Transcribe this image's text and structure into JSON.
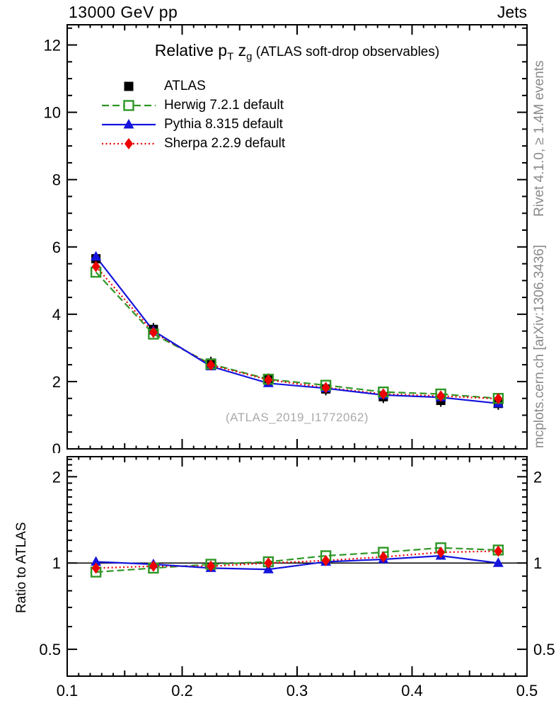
{
  "header": {
    "left": "13000 GeV pp",
    "right": "Jets"
  },
  "title": {
    "part1": "Relative p",
    "sub1": "T",
    "part2": " z",
    "sub2": "g",
    "part3": " (ATLAS soft-drop observables)"
  },
  "watermark": "(ATLAS_2019_I1772062)",
  "ratio_axis_label": "Ratio to ATLAS",
  "side_labels": {
    "rivet": "Rivet 4.1.0, ≥ 1.4M events",
    "mcplots": "mcplots.cern.ch [arXiv:1306.3436]"
  },
  "colors": {
    "atlas": "#000000",
    "herwig": "#2e9625",
    "pythia": "#1414dd",
    "sherpa": "#ee0000",
    "gray_text": "#8a8a8a",
    "watermark": "#aaaaaa"
  },
  "legend": [
    {
      "label": "ATLAS",
      "color": "#000000",
      "marker": "square-filled",
      "line": null
    },
    {
      "label": "Herwig 7.2.1 default",
      "color": "#2e9625",
      "marker": "square-open",
      "line": "dashed"
    },
    {
      "label": "Pythia 8.315 default",
      "color": "#1414dd",
      "marker": "triangle-filled",
      "line": "solid"
    },
    {
      "label": "Sherpa 2.2.9 default",
      "color": "#ee0000",
      "marker": "diamond-filled",
      "line": "dotted"
    }
  ],
  "chart_data": {
    "type": "line",
    "title": "Relative pT zg (ATLAS soft-drop observables)",
    "xlabel": "zg",
    "x": [
      0.125,
      0.175,
      0.225,
      0.275,
      0.325,
      0.375,
      0.425,
      0.475
    ],
    "xlim": [
      0.1,
      0.5
    ],
    "xticks": [
      0.1,
      0.2,
      0.3,
      0.4,
      0.5
    ],
    "legend_position": "top-left",
    "grid": false,
    "main": {
      "scale": "linear",
      "ylim": [
        0,
        12.6
      ],
      "yticks": [
        0,
        2,
        4,
        6,
        8,
        10,
        12
      ],
      "series": [
        {
          "name": "ATLAS",
          "values": [
            5.65,
            3.55,
            2.55,
            2.05,
            1.78,
            1.55,
            1.44,
            1.35
          ]
        },
        {
          "name": "Herwig 7.2.1 default",
          "values": [
            5.25,
            3.41,
            2.52,
            2.07,
            1.89,
            1.69,
            1.63,
            1.5
          ]
        },
        {
          "name": "Pythia 8.315 default",
          "values": [
            5.71,
            3.51,
            2.45,
            1.95,
            1.8,
            1.6,
            1.53,
            1.35
          ]
        },
        {
          "name": "Sherpa 2.2.9 default",
          "values": [
            5.42,
            3.46,
            2.49,
            2.05,
            1.82,
            1.63,
            1.57,
            1.49
          ]
        }
      ]
    },
    "ratio": {
      "scale": "log",
      "ylabel": "Ratio to ATLAS",
      "ylim": [
        0.403,
        2.35
      ],
      "yticks": [
        0.5,
        1,
        2
      ],
      "series": [
        {
          "name": "Herwig 7.2.1 default",
          "values": [
            0.93,
            0.96,
            0.99,
            1.01,
            1.06,
            1.09,
            1.13,
            1.11
          ]
        },
        {
          "name": "Pythia 8.315 default",
          "values": [
            1.01,
            0.99,
            0.96,
            0.95,
            1.01,
            1.03,
            1.06,
            1.0
          ]
        },
        {
          "name": "Sherpa 2.2.9 default",
          "values": [
            0.96,
            0.975,
            0.975,
            1.0,
            1.02,
            1.05,
            1.09,
            1.1
          ]
        }
      ]
    }
  }
}
